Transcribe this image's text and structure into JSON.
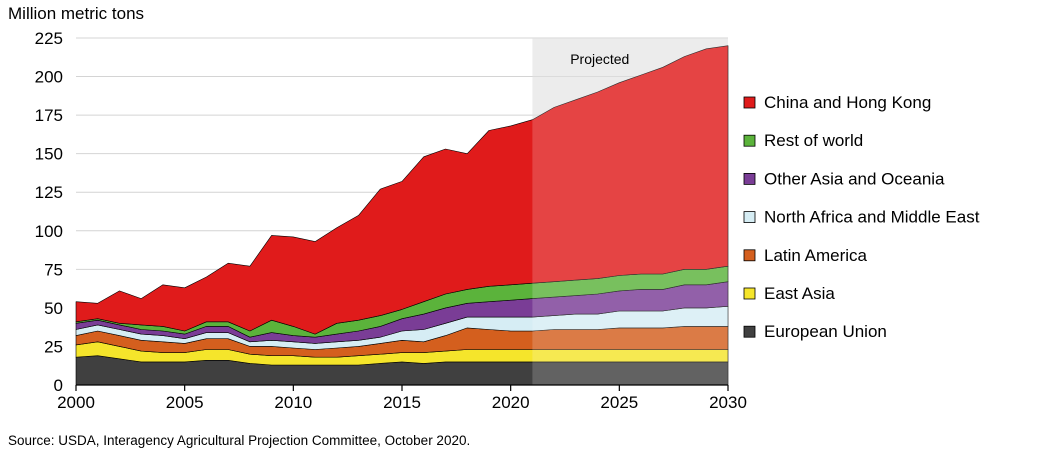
{
  "chart_data": {
    "type": "area",
    "stacked": true,
    "ylabel": "Million metric tons",
    "ylim": [
      0,
      225
    ],
    "yticks": [
      0,
      25,
      50,
      75,
      100,
      125,
      150,
      175,
      200,
      225
    ],
    "xlim": [
      2000,
      2030
    ],
    "xticks": [
      2000,
      2005,
      2010,
      2015,
      2020,
      2025,
      2030
    ],
    "grid": "horizontal",
    "legend_position": "right",
    "projected_from": 2021,
    "projected_label": "Projected",
    "x": [
      2000,
      2001,
      2002,
      2003,
      2004,
      2005,
      2006,
      2007,
      2008,
      2009,
      2010,
      2011,
      2012,
      2013,
      2014,
      2015,
      2016,
      2017,
      2018,
      2019,
      2020,
      2021,
      2022,
      2023,
      2024,
      2025,
      2026,
      2027,
      2028,
      2029,
      2030
    ],
    "series": [
      {
        "name": "European Union",
        "color": "#404040",
        "values": [
          18,
          19,
          17,
          15,
          15,
          15,
          16,
          16,
          14,
          13,
          13,
          13,
          13,
          13,
          14,
          15,
          14,
          15,
          15,
          15,
          15,
          15,
          15,
          15,
          15,
          15,
          15,
          15,
          15,
          15,
          15
        ]
      },
      {
        "name": "East Asia",
        "color": "#f5e52b",
        "values": [
          8,
          9,
          8,
          7,
          6,
          6,
          7,
          7,
          6,
          6,
          6,
          5,
          5,
          6,
          6,
          6,
          7,
          7,
          8,
          8,
          8,
          8,
          8,
          8,
          8,
          8,
          8,
          8,
          8,
          8,
          8
        ]
      },
      {
        "name": "Latin America",
        "color": "#d45f1e",
        "values": [
          6,
          7,
          7,
          7,
          7,
          6,
          7,
          7,
          5,
          6,
          5,
          5,
          6,
          6,
          7,
          8,
          7,
          10,
          14,
          13,
          12,
          12,
          13,
          13,
          13,
          14,
          14,
          14,
          15,
          15,
          15
        ]
      },
      {
        "name": "North Africa and Middle East",
        "color": "#d6edf4",
        "values": [
          4,
          4,
          4,
          4,
          4,
          3,
          4,
          4,
          3,
          4,
          4,
          4,
          4,
          4,
          4,
          6,
          8,
          8,
          7,
          8,
          9,
          9,
          9,
          10,
          10,
          11,
          11,
          11,
          12,
          12,
          13
        ]
      },
      {
        "name": "Other Asia and Oceania",
        "color": "#7a3d96",
        "values": [
          4,
          3,
          3,
          3,
          3,
          3,
          4,
          4,
          3,
          5,
          4,
          4,
          5,
          6,
          7,
          8,
          10,
          10,
          9,
          10,
          11,
          12,
          12,
          12,
          13,
          13,
          14,
          14,
          15,
          15,
          16
        ]
      },
      {
        "name": "Rest of world",
        "color": "#5bb33b",
        "values": [
          1,
          1,
          1,
          3,
          3,
          2,
          3,
          3,
          4,
          8,
          6,
          2,
          7,
          7,
          7,
          6,
          8,
          9,
          9,
          10,
          10,
          10,
          10,
          10,
          10,
          10,
          10,
          10,
          10,
          10,
          10
        ]
      },
      {
        "name": "China and Hong Kong",
        "color": "#e01b1b",
        "values": [
          13,
          10,
          21,
          17,
          27,
          28,
          29,
          38,
          42,
          55,
          58,
          60,
          62,
          68,
          82,
          83,
          94,
          94,
          88,
          101,
          103,
          106,
          113,
          117,
          121,
          125,
          129,
          134,
          138,
          143,
          143
        ]
      }
    ],
    "legend_order": [
      "China and Hong Kong",
      "Rest of world",
      "Other Asia and Oceania",
      "North Africa and Middle East",
      "Latin America",
      "East Asia",
      "European Union"
    ]
  },
  "source": "Source: USDA, Interagency Agricultural Projection Committee, October 2020."
}
